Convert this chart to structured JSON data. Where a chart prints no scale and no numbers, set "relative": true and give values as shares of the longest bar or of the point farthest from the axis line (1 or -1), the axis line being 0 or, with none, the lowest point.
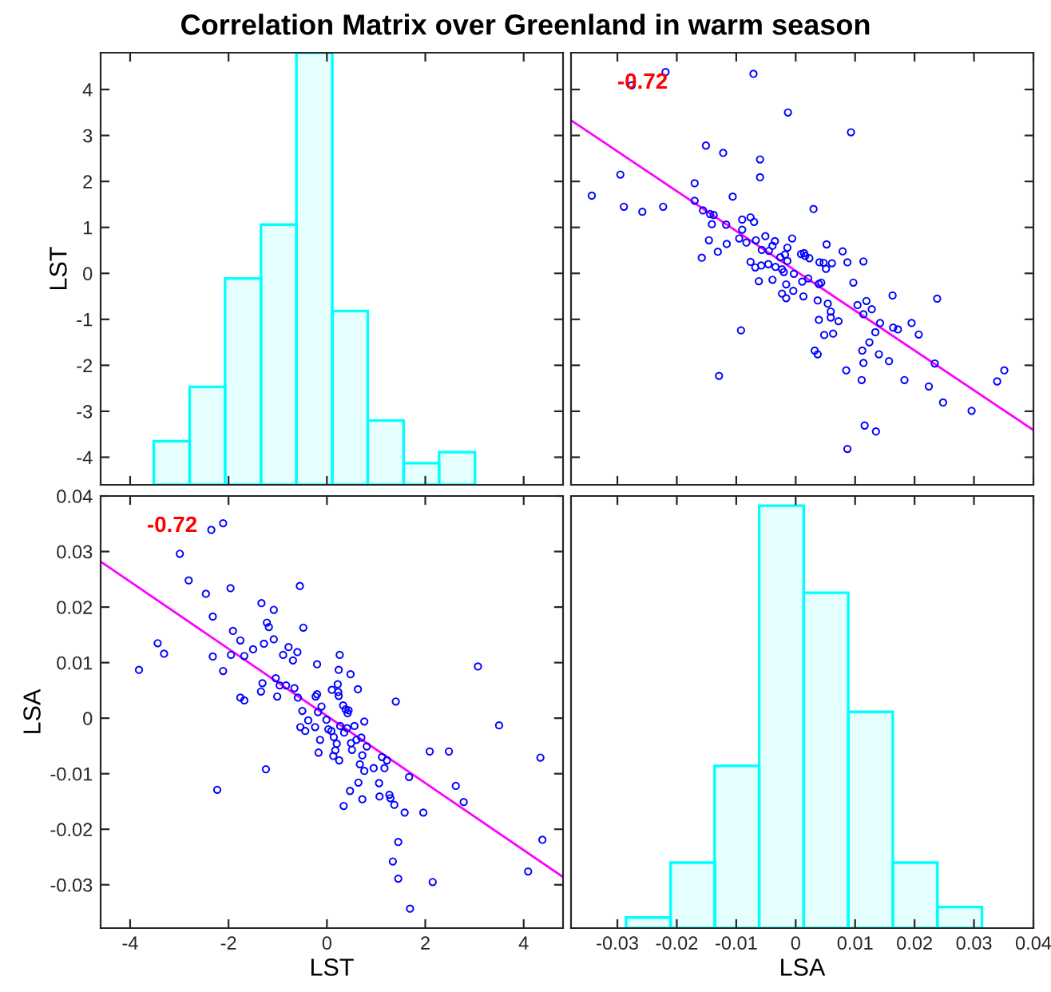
{
  "chart_data": [
    {
      "type": "histogram",
      "title": "Correlation Matrix over Greenland in warm season",
      "ylabel": "LST",
      "color": "#00ffff",
      "bins": [
        -3.52,
        -2.79,
        -2.07,
        -1.34,
        -0.62,
        0.11,
        0.83,
        1.56,
        2.28,
        3.01
      ],
      "values": [
        0.95,
        2.13,
        4.49,
        5.66,
        9.4,
        3.78,
        1.4,
        0.47,
        0.71
      ],
      "base": [
        -4.6,
        -4.6,
        -4.6,
        -4.6,
        -4.6,
        -4.6,
        -4.6,
        -4.6,
        -4.6
      ],
      "xlim": [
        -4.6,
        4.8
      ],
      "xticks": [
        -4,
        -2,
        0,
        2,
        4
      ],
      "ylim": [
        -4.6,
        4.8
      ],
      "yticks": [
        -4,
        -3,
        -2,
        -1,
        0,
        1,
        2,
        3,
        4
      ],
      "tick_labels": "y",
      "grid": false
    },
    {
      "type": "scatter",
      "annotations": [
        "-0.72"
      ],
      "xlim": [
        -0.0378,
        0.04
      ],
      "xticks": [
        -0.03,
        -0.02,
        -0.01,
        0,
        0.01,
        0.02,
        0.03,
        0.04
      ],
      "ylim": [
        -4.6,
        4.8
      ],
      "yticks": [
        -4,
        -3,
        -2,
        -1,
        0,
        1,
        2,
        3,
        4
      ],
      "tick_labels": false,
      "grid": false,
      "series": [
        {
          "type": "scatter",
          "color": "#0000ff",
          "marker": "circle",
          "x": [
            0.0087,
            0.0135,
            0.0116,
            0.0296,
            0.0248,
            0.0224,
            0.0339,
            0.0351,
            0.0183,
            0.0111,
            -0.0129,
            0.0085,
            0.0234,
            0.0114,
            0.0157,
            0.014,
            0.0112,
            0.0037,
            0.0032,
            0.0124,
            0.0207,
            0.0134,
            0.0172,
            0.0164,
            0.0195,
            0.0142,
            0.0048,
            0.0063,
            -0.0092,
            0.0072,
            0.0039,
            0.0059,
            0.0114,
            0.0059,
            0.0128,
            0.0104,
            0.0054,
            0.0119,
            0.0037,
            0.0238,
            0.0163,
            -0.0016,
            0.0013,
            -0.0023,
            -0.0004,
            -0.0016,
            0.0039,
            0.0043,
            0.0097,
            0.0011,
            -0.0062,
            -0.0039,
            0.0021,
            -0.0003,
            -0.002,
            0.0051,
            -0.0023,
            -0.0068,
            -0.0034,
            -0.0058,
            -0.0046,
            0.0061,
            0.0047,
            0.004,
            0.0087,
            0.0114,
            -0.0076,
            -0.0014,
            0.0023,
            -0.0026,
            -0.0158,
            0.0016,
            0.0009,
            0.0014,
            -0.0018,
            -0.0131,
            -0.0045,
            0.0079,
            -0.0057,
            -0.0014,
            -0.0039,
            0.0052,
            -0.0116,
            -0.0083,
            -0.0035,
            -0.0067,
            -0.0146,
            -0.0006,
            -0.0095,
            -0.0051,
            -0.009,
            -0.0117,
            -0.0141,
            -0.007,
            -0.009,
            -0.0076,
            -0.0138,
            -0.0144,
            -0.0156,
            -0.0258,
            0.003,
            -0.0223,
            -0.0289,
            -0.017,
            -0.0106,
            -0.0343,
            -0.017,
            -0.006,
            -0.0295,
            -0.006,
            -0.0122,
            -0.0151,
            0.0093,
            -0.0013,
            -0.0276,
            -0.0071,
            -0.0219
          ],
          "values": [
            -3.82,
            -3.44,
            -3.31,
            -2.99,
            -2.81,
            -2.46,
            -2.35,
            -2.11,
            -2.32,
            -2.32,
            -2.23,
            -2.11,
            -1.96,
            -1.95,
            -1.91,
            -1.76,
            -1.68,
            -1.76,
            -1.68,
            -1.5,
            -1.33,
            -1.28,
            -1.22,
            -1.18,
            -1.08,
            -1.08,
            -1.34,
            -1.31,
            -1.24,
            -1.04,
            -1.01,
            -0.96,
            -0.89,
            -0.83,
            -0.78,
            -0.69,
            -0.66,
            -0.6,
            -0.59,
            -0.55,
            -0.48,
            -0.54,
            -0.5,
            -0.44,
            -0.38,
            -0.24,
            -0.23,
            -0.2,
            -0.2,
            -0.18,
            -0.17,
            -0.14,
            -0.11,
            -0.01,
            0.03,
            0.1,
            0.09,
            0.13,
            0.14,
            0.17,
            0.2,
            0.22,
            0.23,
            0.24,
            0.24,
            0.26,
            0.25,
            0.27,
            0.33,
            0.35,
            0.34,
            0.38,
            0.42,
            0.44,
            0.41,
            0.47,
            0.49,
            0.48,
            0.51,
            0.56,
            0.6,
            0.63,
            0.64,
            0.67,
            0.7,
            0.72,
            0.72,
            0.76,
            0.76,
            0.81,
            0.95,
            1.06,
            1.07,
            1.12,
            1.17,
            1.22,
            1.27,
            1.29,
            1.37,
            1.34,
            1.4,
            1.45,
            1.45,
            1.58,
            1.67,
            1.69,
            1.96,
            2.09,
            2.15,
            2.48,
            2.62,
            2.78,
            3.07,
            3.5,
            4.09,
            4.34,
            4.38
          ]
        },
        {
          "type": "line",
          "color": "#ff00ff",
          "x": [
            -0.0378,
            0.04
          ],
          "values": [
            3.33,
            -3.41
          ]
        }
      ]
    },
    {
      "type": "scatter",
      "xlabel": "LST",
      "ylabel": "LSA",
      "annotations": [
        "-0.72"
      ],
      "xlim": [
        -4.6,
        4.8
      ],
      "xticks": [
        -4,
        -2,
        0,
        2,
        4
      ],
      "ylim": [
        -0.0378,
        0.04
      ],
      "yticks": [
        -0.03,
        -0.02,
        -0.01,
        0,
        0.01,
        0.02,
        0.03,
        0.04
      ],
      "grid": false,
      "series": [
        {
          "type": "scatter",
          "color": "#0000ff",
          "marker": "circle",
          "x": [
            -3.82,
            -3.44,
            -3.31,
            -2.99,
            -2.81,
            -2.46,
            -2.35,
            -2.11,
            -2.32,
            -2.32,
            -2.23,
            -2.11,
            -1.96,
            -1.95,
            -1.91,
            -1.76,
            -1.68,
            -1.76,
            -1.68,
            -1.5,
            -1.33,
            -1.28,
            -1.22,
            -1.18,
            -1.08,
            -1.08,
            -1.34,
            -1.31,
            -1.24,
            -1.04,
            -1.01,
            -0.96,
            -0.89,
            -0.83,
            -0.78,
            -0.69,
            -0.66,
            -0.6,
            -0.59,
            -0.55,
            -0.48,
            -0.54,
            -0.5,
            -0.44,
            -0.38,
            -0.24,
            -0.23,
            -0.2,
            -0.2,
            -0.18,
            -0.17,
            -0.14,
            -0.11,
            -0.01,
            0.03,
            0.1,
            0.09,
            0.13,
            0.14,
            0.17,
            0.2,
            0.22,
            0.23,
            0.24,
            0.24,
            0.26,
            0.25,
            0.27,
            0.33,
            0.35,
            0.34,
            0.38,
            0.42,
            0.44,
            0.41,
            0.47,
            0.49,
            0.48,
            0.51,
            0.56,
            0.6,
            0.63,
            0.64,
            0.67,
            0.7,
            0.72,
            0.72,
            0.76,
            0.76,
            0.81,
            0.95,
            1.06,
            1.07,
            1.12,
            1.17,
            1.22,
            1.27,
            1.29,
            1.37,
            1.34,
            1.4,
            1.45,
            1.45,
            1.58,
            1.67,
            1.69,
            1.96,
            2.09,
            2.15,
            2.48,
            2.62,
            2.78,
            3.07,
            3.5,
            4.09,
            4.34,
            4.38
          ],
          "values": [
            0.0087,
            0.0135,
            0.0116,
            0.0296,
            0.0248,
            0.0224,
            0.0339,
            0.0351,
            0.0183,
            0.0111,
            -0.0129,
            0.0085,
            0.0234,
            0.0114,
            0.0157,
            0.014,
            0.0112,
            0.0037,
            0.0032,
            0.0124,
            0.0207,
            0.0134,
            0.0172,
            0.0164,
            0.0195,
            0.0142,
            0.0048,
            0.0063,
            -0.0092,
            0.0072,
            0.0039,
            0.0059,
            0.0114,
            0.0059,
            0.0128,
            0.0104,
            0.0054,
            0.0119,
            0.0037,
            0.0238,
            0.0163,
            -0.0016,
            0.0013,
            -0.0023,
            -0.0004,
            -0.0016,
            0.0039,
            0.0043,
            0.0097,
            0.0011,
            -0.0062,
            -0.0039,
            0.0021,
            -0.0003,
            -0.002,
            0.0051,
            -0.0023,
            -0.0068,
            -0.0034,
            -0.0058,
            -0.0046,
            0.0061,
            0.0047,
            0.004,
            0.0087,
            0.0114,
            -0.0076,
            -0.0014,
            0.0023,
            -0.0026,
            -0.0158,
            0.0016,
            0.0009,
            0.0014,
            -0.0018,
            -0.0131,
            -0.0045,
            0.0079,
            -0.0057,
            -0.0014,
            -0.0039,
            0.0052,
            -0.0116,
            -0.0083,
            -0.0035,
            -0.0067,
            -0.0146,
            -0.0006,
            -0.0095,
            -0.0051,
            -0.009,
            -0.0117,
            -0.0141,
            -0.007,
            -0.009,
            -0.0076,
            -0.0138,
            -0.0144,
            -0.0156,
            -0.0258,
            0.003,
            -0.0223,
            -0.0289,
            -0.017,
            -0.0106,
            -0.0343,
            -0.017,
            -0.006,
            -0.0295,
            -0.006,
            -0.0122,
            -0.0151,
            0.0093,
            -0.0013,
            -0.0276,
            -0.0071,
            -0.0219
          ]
        },
        {
          "type": "line",
          "color": "#ff00ff",
          "x": [
            -4.6,
            4.8
          ],
          "values": [
            0.0282,
            -0.0286
          ]
        }
      ]
    },
    {
      "type": "bar",
      "xlabel": "LSA",
      "color": "#00ffff",
      "relative": true,
      "x": [
        -0.0248,
        -0.0173,
        -0.0099,
        -0.0024,
        0.0051,
        0.0126,
        0.0201,
        0.0276
      ],
      "values": [
        0.025,
        0.155,
        0.384,
        1,
        0.794,
        0.512,
        0.155,
        0.05
      ],
      "xlim": [
        -0.0378,
        0.04
      ],
      "xticks": [
        -0.03,
        -0.02,
        -0.01,
        0,
        0.01,
        0.02,
        0.03,
        0.04
      ],
      "tick_labels": "x",
      "grid": false
    }
  ]
}
